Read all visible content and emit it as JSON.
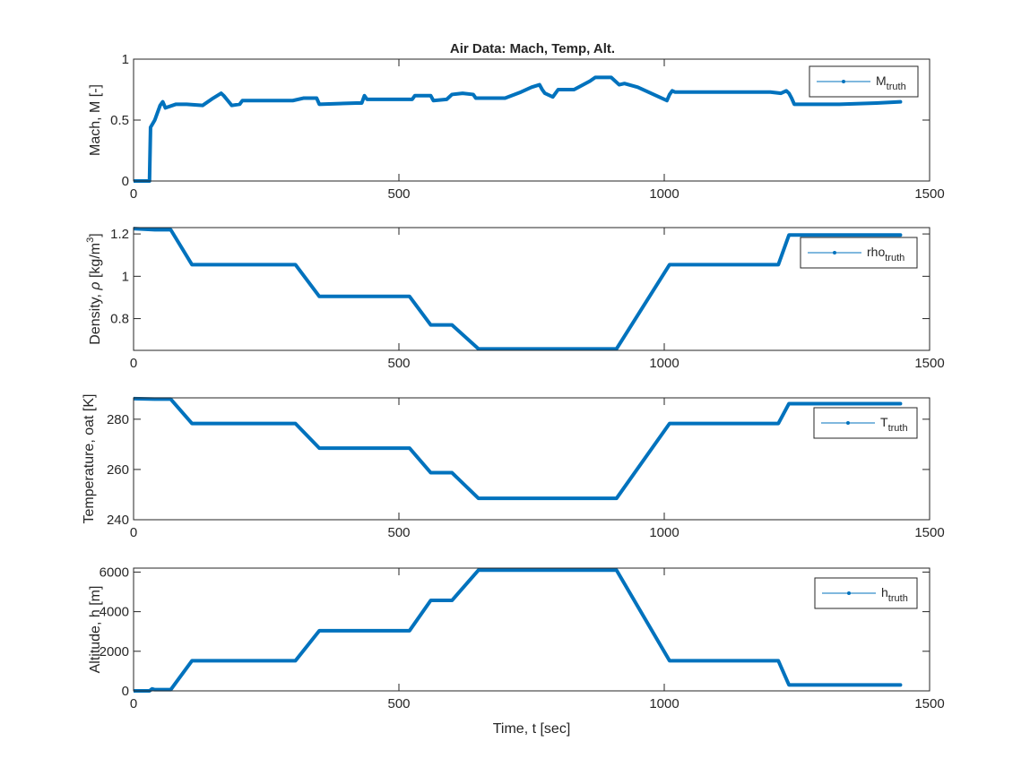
{
  "chart_data": [
    {
      "type": "line",
      "title": "Air Data: Mach, Temp, Alt.",
      "xlabel": "",
      "ylabel": "Mach, M [-]",
      "xlim": [
        0,
        1500
      ],
      "ylim": [
        0,
        1
      ],
      "xticks": [
        0,
        500,
        1000,
        1500
      ],
      "yticks": [
        0,
        0.5,
        1
      ],
      "xtick_labels": [
        "0",
        "500",
        "1000",
        "1500"
      ],
      "ytick_labels": [
        "0",
        "0.5",
        "1"
      ],
      "legend": {
        "base": "M",
        "sub": "truth",
        "position": "top-right"
      },
      "series": [
        {
          "color": "#0072bd",
          "x": [
            0,
            28,
            30,
            32,
            40,
            50,
            55,
            60,
            80,
            100,
            130,
            150,
            165,
            170,
            185,
            200,
            205,
            300,
            320,
            345,
            350,
            420,
            430,
            435,
            440,
            520,
            525,
            530,
            560,
            565,
            590,
            600,
            620,
            640,
            645,
            700,
            730,
            750,
            765,
            770,
            775,
            790,
            800,
            820,
            830,
            860,
            870,
            900,
            915,
            925,
            950,
            1005,
            1010,
            1015,
            1020,
            1030,
            1080,
            1150,
            1200,
            1220,
            1230,
            1235,
            1240,
            1245,
            1330,
            1400,
            1445
          ],
          "y": [
            0,
            0,
            0,
            0.44,
            0.5,
            0.62,
            0.65,
            0.6,
            0.63,
            0.63,
            0.62,
            0.68,
            0.72,
            0.7,
            0.62,
            0.63,
            0.66,
            0.66,
            0.68,
            0.68,
            0.63,
            0.64,
            0.64,
            0.7,
            0.67,
            0.67,
            0.67,
            0.7,
            0.7,
            0.66,
            0.67,
            0.71,
            0.72,
            0.71,
            0.68,
            0.68,
            0.73,
            0.77,
            0.79,
            0.75,
            0.72,
            0.69,
            0.75,
            0.75,
            0.75,
            0.82,
            0.85,
            0.85,
            0.79,
            0.8,
            0.77,
            0.66,
            0.71,
            0.74,
            0.73,
            0.73,
            0.73,
            0.73,
            0.73,
            0.72,
            0.74,
            0.72,
            0.68,
            0.63,
            0.63,
            0.64,
            0.65
          ]
        }
      ]
    },
    {
      "type": "line",
      "title": "",
      "xlabel": "",
      "ylabel": "Density, ρ [kg/m³]",
      "ylabel_parts": [
        "Density, ",
        "ρ",
        " [kg/m",
        "3",
        "]"
      ],
      "xlim": [
        0,
        1500
      ],
      "ylim": [
        0.65,
        1.23
      ],
      "xticks": [
        0,
        500,
        1000,
        1500
      ],
      "yticks": [
        0.8,
        1,
        1.2
      ],
      "xtick_labels": [
        "0",
        "500",
        "1000",
        "1500"
      ],
      "ytick_labels": [
        "0.8",
        "1",
        "1.2"
      ],
      "legend": {
        "base": "rho",
        "sub": "truth",
        "position": "top-right"
      },
      "series": [
        {
          "color": "#0072bd",
          "x": [
            0,
            40,
            70,
            110,
            305,
            350,
            520,
            560,
            600,
            650,
            910,
            1010,
            1215,
            1235,
            1445
          ],
          "y": [
            1.225,
            1.22,
            1.22,
            1.055,
            1.055,
            0.905,
            0.905,
            0.77,
            0.77,
            0.657,
            0.657,
            1.055,
            1.055,
            1.195,
            1.195
          ]
        }
      ]
    },
    {
      "type": "line",
      "title": "",
      "xlabel": "",
      "ylabel": "Temperature, oat [K]",
      "xlim": [
        0,
        1500
      ],
      "ylim": [
        240,
        288.5
      ],
      "xticks": [
        0,
        500,
        1000,
        1500
      ],
      "yticks": [
        240,
        260,
        280
      ],
      "xtick_labels": [
        "0",
        "500",
        "1000",
        "1500"
      ],
      "ytick_labels": [
        "240",
        "260",
        "280"
      ],
      "legend": {
        "base": "T",
        "sub": "truth",
        "position": "top-right"
      },
      "series": [
        {
          "color": "#0072bd",
          "x": [
            0,
            40,
            70,
            110,
            305,
            350,
            520,
            560,
            600,
            650,
            910,
            1010,
            1215,
            1235,
            1445
          ],
          "y": [
            288.2,
            288,
            288,
            278.3,
            278.3,
            268.5,
            268.5,
            258.7,
            258.7,
            248.5,
            248.5,
            278.3,
            278.3,
            286.2,
            286.2
          ]
        }
      ]
    },
    {
      "type": "line",
      "title": "",
      "xlabel": "Time, t [sec]",
      "ylabel": "Altitude, h [m]",
      "xlim": [
        0,
        1500
      ],
      "ylim": [
        0,
        6200
      ],
      "xticks": [
        0,
        500,
        1000,
        1500
      ],
      "yticks": [
        0,
        2000,
        4000,
        6000
      ],
      "xtick_labels": [
        "0",
        "500",
        "1000",
        "1500"
      ],
      "ytick_labels": [
        "0",
        "2000",
        "4000",
        "6000"
      ],
      "legend": {
        "base": "h",
        "sub": "truth",
        "position": "top-right"
      },
      "series": [
        {
          "color": "#0072bd",
          "x": [
            0,
            30,
            35,
            40,
            70,
            110,
            305,
            350,
            520,
            560,
            600,
            650,
            910,
            1010,
            1215,
            1235,
            1445
          ],
          "y": [
            0,
            0,
            100,
            60,
            60,
            1520,
            1520,
            3040,
            3040,
            4570,
            4570,
            6100,
            6100,
            1520,
            1520,
            300,
            300
          ]
        }
      ]
    }
  ]
}
